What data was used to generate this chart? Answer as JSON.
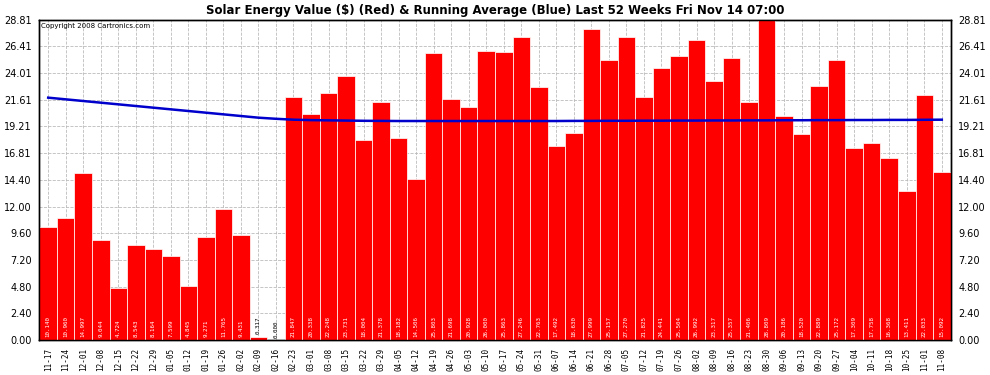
{
  "title": "Solar Energy Value ($) (Red) & Running Average (Blue) Last 52 Weeks Fri Nov 14 07:00",
  "copyright": "Copyright 2008 Cartronics.com",
  "bar_color": "#FF0000",
  "avg_line_color": "#0000CC",
  "background_color": "#FFFFFF",
  "plot_bg_color": "#FFFFFF",
  "grid_color": "#BBBBBB",
  "ylim": [
    0.0,
    28.81
  ],
  "yticks": [
    0.0,
    2.4,
    4.8,
    7.2,
    9.6,
    12.0,
    14.4,
    16.81,
    19.21,
    21.61,
    24.01,
    26.41,
    28.81
  ],
  "categories": [
    "11-17",
    "11-24",
    "12-01",
    "12-08",
    "12-15",
    "12-22",
    "12-29",
    "01-05",
    "01-12",
    "01-19",
    "01-26",
    "02-02",
    "02-09",
    "02-16",
    "02-23",
    "03-01",
    "03-08",
    "03-15",
    "03-22",
    "03-29",
    "04-05",
    "04-12",
    "04-19",
    "04-26",
    "05-03",
    "05-10",
    "05-17",
    "05-24",
    "05-31",
    "06-07",
    "06-14",
    "06-21",
    "06-28",
    "07-05",
    "07-12",
    "07-19",
    "07-26",
    "08-02",
    "08-09",
    "08-16",
    "08-23",
    "08-30",
    "09-06",
    "09-13",
    "09-20",
    "09-27",
    "10-04",
    "10-11",
    "10-18",
    "10-25",
    "11-01",
    "11-08"
  ],
  "values": [
    10.14,
    10.96,
    14.997,
    9.044,
    4.724,
    8.543,
    8.164,
    7.599,
    4.845,
    9.271,
    11.765,
    9.431,
    0.317,
    0.0,
    21.847,
    20.338,
    22.248,
    23.731,
    18.004,
    21.378,
    18.182,
    14.506,
    25.803,
    21.698,
    20.928,
    26.0,
    25.863,
    27.246,
    22.763,
    17.492,
    18.63,
    27.999,
    25.157,
    27.27,
    21.825,
    24.441,
    25.504,
    26.992,
    23.317,
    25.357,
    21.406,
    28.809,
    20.186,
    18.52,
    22.889,
    25.172,
    17.309,
    17.758,
    16.368,
    13.411,
    22.033,
    15.092
  ],
  "avg_values": [
    21.8,
    21.65,
    21.5,
    21.35,
    21.2,
    21.05,
    20.9,
    20.75,
    20.6,
    20.45,
    20.3,
    20.15,
    20.0,
    19.9,
    19.82,
    19.78,
    19.76,
    19.74,
    19.72,
    19.71,
    19.7,
    19.7,
    19.7,
    19.7,
    19.7,
    19.7,
    19.7,
    19.7,
    19.7,
    19.7,
    19.71,
    19.71,
    19.72,
    19.72,
    19.73,
    19.73,
    19.74,
    19.74,
    19.75,
    19.75,
    19.76,
    19.76,
    19.77,
    19.77,
    19.78,
    19.78,
    19.79,
    19.79,
    19.8,
    19.8,
    19.81,
    19.82
  ],
  "bar_labels": [
    "10.140",
    "10.960",
    "14.997",
    "9.044",
    "4.724",
    "8.543",
    "8.164",
    "7.599",
    "4.845",
    "9.271",
    "11.765",
    "9.431",
    "0.317",
    "0.000",
    "21.847",
    "20.338",
    "22.248",
    "23.731",
    "18.004",
    "21.378",
    "18.182",
    "14.506",
    "25.803",
    "21.698",
    "20.928",
    "26.000",
    "25.863",
    "27.246",
    "22.763",
    "17.492",
    "18.630",
    "27.999",
    "25.157",
    "27.270",
    "21.825",
    "24.441",
    "25.504",
    "26.992",
    "23.317",
    "25.357",
    "21.406",
    "28.809",
    "20.186",
    "18.520",
    "22.889",
    "25.172",
    "17.309",
    "17.758",
    "16.368",
    "13.411",
    "22.033",
    "15.092"
  ]
}
